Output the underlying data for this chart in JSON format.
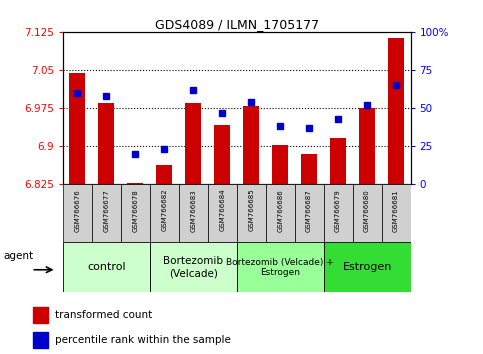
{
  "title": "GDS4089 / ILMN_1705177",
  "samples": [
    "GSM766676",
    "GSM766677",
    "GSM766678",
    "GSM766682",
    "GSM766683",
    "GSM766684",
    "GSM766685",
    "GSM766686",
    "GSM766687",
    "GSM766679",
    "GSM766680",
    "GSM766681"
  ],
  "red_values": [
    7.043,
    6.985,
    6.828,
    6.863,
    6.985,
    6.942,
    6.978,
    6.902,
    6.884,
    6.915,
    6.975,
    7.112
  ],
  "blue_values": [
    60,
    58,
    20,
    23,
    62,
    47,
    54,
    38,
    37,
    43,
    52,
    65
  ],
  "ylim_left": [
    6.825,
    7.125
  ],
  "ylim_right": [
    0,
    100
  ],
  "yticks_left": [
    6.825,
    6.9,
    6.975,
    7.05,
    7.125
  ],
  "yticks_right": [
    0,
    25,
    50,
    75,
    100
  ],
  "ytick_labels_right": [
    "0",
    "25",
    "50",
    "75",
    "100%"
  ],
  "bar_color": "#cc0000",
  "dot_color": "#0000cc",
  "baseline": 6.825,
  "group_colors": [
    "#ccffcc",
    "#ccffcc",
    "#99ff99",
    "#33dd33"
  ],
  "group_labels": [
    "control",
    "Bortezomib\n(Velcade)",
    "Bortezomib (Velcade) +\nEstrogen",
    "Estrogen"
  ],
  "group_ranges": [
    [
      0,
      2
    ],
    [
      3,
      5
    ],
    [
      6,
      8
    ],
    [
      9,
      11
    ]
  ],
  "group_fontsizes": [
    8,
    7.5,
    6.5,
    8
  ],
  "legend_label_red": "transformed count",
  "legend_label_blue": "percentile rank within the sample",
  "agent_label": "agent"
}
